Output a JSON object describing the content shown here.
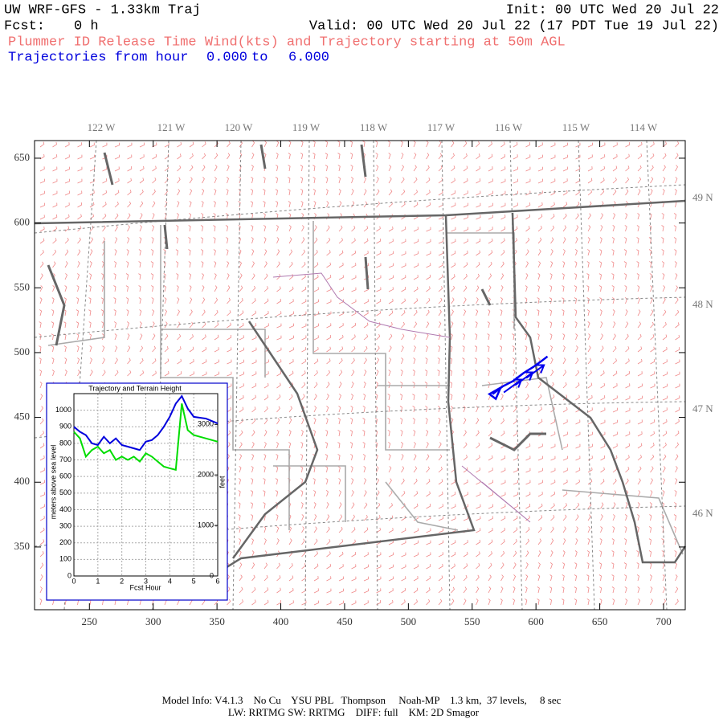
{
  "header": {
    "title": "UW WRF-GFS - 1.33km Traj",
    "init": "Init: 00 UTC Wed 20 Jul 22",
    "fcst_label": "Fcst:",
    "fcst_value": "0 h",
    "valid": "Valid: 00 UTC Wed 20 Jul 22 (17 PDT Tue 19 Jul 22)",
    "subtitle": "Plummer ID Release Time Wind(kts) and Trajectory starting at 50m AGL",
    "traj_label": "Trajectories from hour",
    "traj_from": "0.000",
    "traj_to_word": "to",
    "traj_to": "6.000"
  },
  "map": {
    "xlim": [
      207,
      717
    ],
    "ylim": [
      301.6,
      663.6
    ],
    "xticks": [
      250,
      300,
      350,
      400,
      450,
      500,
      550,
      600,
      650,
      700
    ],
    "yticks": [
      350,
      400,
      450,
      500,
      550,
      600,
      650
    ],
    "lon_labels": [
      "122 W",
      "121 W",
      "120 W",
      "119 W",
      "118 W",
      "117 W",
      "116 W",
      "115 W",
      "114 W"
    ],
    "lat_labels": [
      "49 N",
      "48 N",
      "47 N",
      "46 N"
    ],
    "trajectory": {
      "color": "#0000ee",
      "x": [
        566,
        574,
        582,
        590,
        598,
        605,
        609
      ],
      "y": [
        468,
        474,
        478,
        484,
        489,
        494,
        497
      ]
    }
  },
  "chart_data": {
    "type": "line",
    "title": "Trajectory and Terrain Height",
    "xlabel": "Fcst Hour",
    "ylabel": "meters above sea level",
    "y2label": "feet",
    "x": [
      0,
      0.25,
      0.5,
      0.75,
      1,
      1.25,
      1.5,
      1.75,
      2,
      2.25,
      2.5,
      2.75,
      3,
      3.25,
      3.5,
      3.75,
      4,
      4.25,
      4.5,
      4.75,
      5,
      5.5,
      6
    ],
    "series": [
      {
        "color": "#0000dd",
        "values": [
          900,
          870,
          850,
          800,
          790,
          840,
          800,
          830,
          790,
          780,
          770,
          760,
          810,
          820,
          850,
          900,
          960,
          1040,
          1085,
          1010,
          960,
          950,
          920
        ]
      },
      {
        "color": "#00dd00",
        "values": [
          870,
          830,
          720,
          760,
          780,
          740,
          760,
          700,
          720,
          700,
          720,
          690,
          740,
          720,
          690,
          660,
          650,
          640,
          1040,
          880,
          850,
          830,
          810
        ]
      }
    ],
    "xlim": [
      0,
      6
    ],
    "xticks": [
      0,
      1,
      2,
      3,
      4,
      5,
      6
    ],
    "ylim": [
      0,
      1100
    ],
    "yticks": [
      0,
      100,
      200,
      300,
      400,
      500,
      600,
      700,
      800,
      900,
      1000
    ],
    "y2lim": [
      0,
      3609
    ],
    "y2ticks": [
      0,
      1000,
      2000,
      3000
    ],
    "grid": true
  },
  "footer": {
    "line1": "Model Info: V4.1.3    No Cu    YSU PBL   Thompson     Noah-MP    1.3 km,  37 levels,     8 sec",
    "line2": "LW: RRTMG SW: RRTMG    DIFF: full    KM: 2D Smagor"
  }
}
